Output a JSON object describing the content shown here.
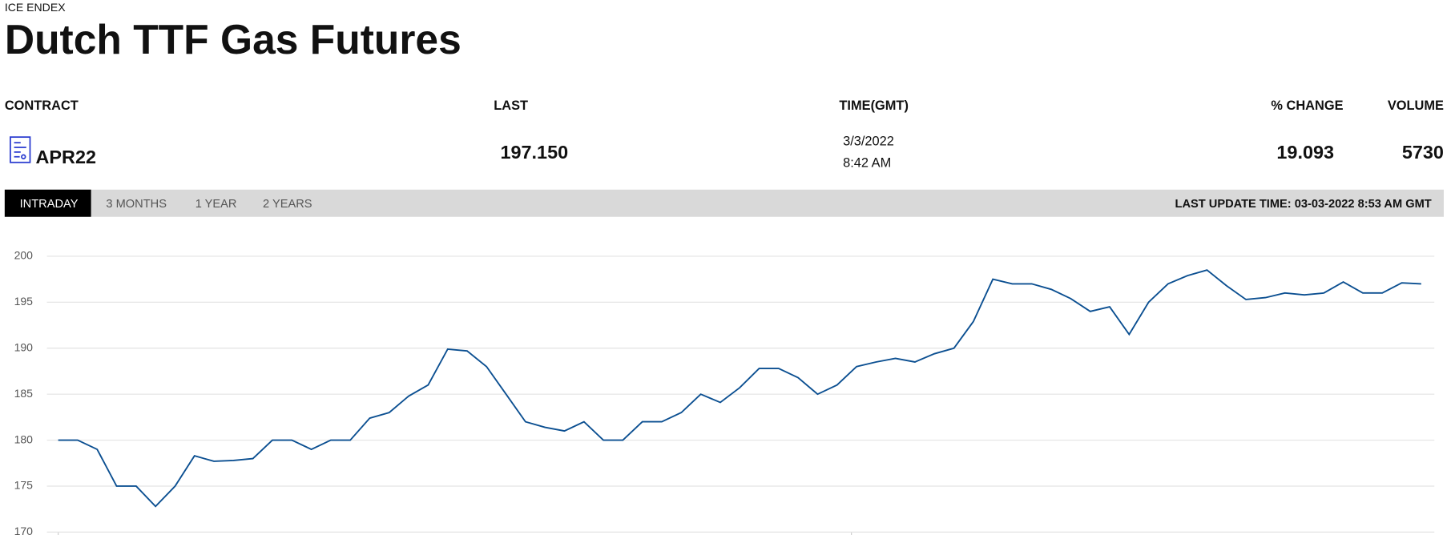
{
  "header": {
    "source": "ICE ENDEX",
    "title": "Dutch TTF Gas Futures"
  },
  "table": {
    "headers": [
      "CONTRACT",
      "LAST",
      "TIME(GMT)",
      "% CHANGE",
      "VOLUME"
    ],
    "rows": [
      {
        "contract": "APR22",
        "last": "197.150",
        "date": "3/3/2022",
        "time": "8:42 AM",
        "change": "19.093",
        "volume": "5730"
      }
    ]
  },
  "tabs": [
    "INTRADAY",
    "3 MONTHS",
    "1 YEAR",
    "2 YEARS"
  ],
  "last_update": "LAST UPDATE TIME: 03-03-2022 8:53 AM GMT",
  "chart_data": {
    "type": "line",
    "color": "#0b4f91",
    "grid": true,
    "ylim": [
      170,
      200
    ],
    "yticks": [
      170,
      175,
      180,
      185,
      190,
      195,
      200
    ],
    "values": [
      180,
      180,
      179,
      175,
      175,
      172.8,
      175,
      178.3,
      177.7,
      177.8,
      178,
      180,
      180,
      179,
      180,
      180,
      182.4,
      183,
      184.8,
      186,
      189.9,
      189.7,
      188,
      185,
      182,
      181.4,
      181,
      182,
      180,
      180,
      182,
      182,
      183,
      185,
      184.1,
      185.7,
      187.8,
      187.8,
      186.8,
      185,
      186,
      188,
      188.5,
      188.9,
      188.5,
      189.4,
      190,
      192.9,
      197.5,
      197,
      197,
      196.4,
      195.4,
      194,
      194.5,
      191.5,
      195,
      197,
      197.9,
      198.5,
      196.8,
      195.3,
      195.5,
      196,
      195.8,
      196,
      197.2,
      196,
      196,
      197.1,
      197
    ]
  }
}
